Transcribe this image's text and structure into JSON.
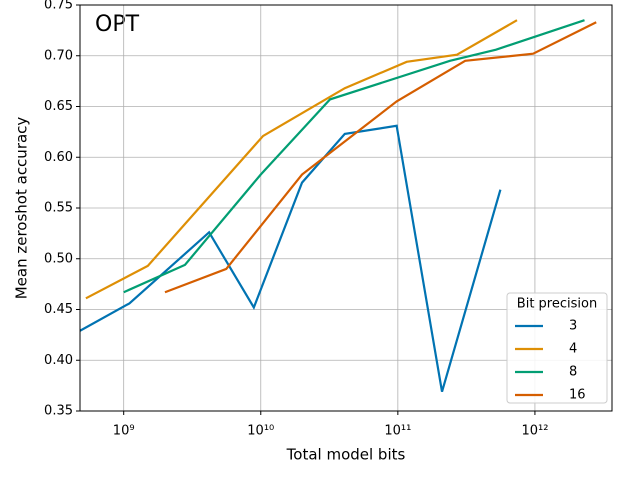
{
  "chart_data": {
    "type": "line",
    "annotation": "OPT",
    "x_label": "Total model bits",
    "y_label": "Mean zeroshot accuracy",
    "xscale": "log",
    "grid": true,
    "xlim": [
      480000000.0,
      3650000000000.0
    ],
    "xticks": [
      {
        "value": 1000000000.0,
        "label": "10⁹"
      },
      {
        "value": 10000000000.0,
        "label": "10¹⁰"
      },
      {
        "value": 100000000000.0,
        "label": "10¹¹"
      },
      {
        "value": 1000000000000.0,
        "label": "10¹²"
      }
    ],
    "ylim": [
      0.35,
      0.75
    ],
    "yticks": [
      0.35,
      {
        "value": 0.4,
        "label": "0.40"
      },
      0.45,
      {
        "value": 0.5,
        "label": "0.50"
      },
      0.55,
      {
        "value": 0.6,
        "label": "0.60"
      },
      0.65,
      {
        "value": 0.7,
        "label": "0.70"
      },
      0.75
    ],
    "legend_title": "Bit precision",
    "legend_position": "lower right",
    "series": [
      {
        "name": "3",
        "color": "#0173b2",
        "x": [
          480000000.0,
          1100000000.0,
          4200000000.0,
          8900000000.0,
          20000000000.0,
          41000000000.0,
          98000000000.0,
          210000000000.0,
          560000000000.0
        ],
        "values": [
          0.429,
          0.456,
          0.526,
          0.452,
          0.575,
          0.623,
          0.631,
          0.369,
          0.568
        ]
      },
      {
        "name": "4",
        "color": "#de8f05",
        "x": [
          530000000.0,
          1500000000.0,
          10400000000.0,
          41000000000.0,
          116000000000.0,
          270000000000.0,
          740000000000.0
        ],
        "values": [
          0.461,
          0.493,
          0.621,
          0.668,
          0.694,
          0.701,
          0.735
        ]
      },
      {
        "name": "8",
        "color": "#029e73",
        "x": [
          1000000000.0,
          2800000000.0,
          10000000000.0,
          32000000000.0,
          240000000000.0,
          520000000000.0,
          2300000000000.0
        ],
        "values": [
          0.467,
          0.494,
          0.583,
          0.657,
          0.695,
          0.706,
          0.735
        ]
      },
      {
        "name": "16",
        "color": "#d55e00",
        "x": [
          2000000000.0,
          5600000000.0,
          20000000000.0,
          98000000000.0,
          310000000000.0,
          970000000000.0,
          2800000000000.0
        ],
        "values": [
          0.467,
          0.49,
          0.583,
          0.655,
          0.695,
          0.702,
          0.733
        ]
      }
    ]
  }
}
